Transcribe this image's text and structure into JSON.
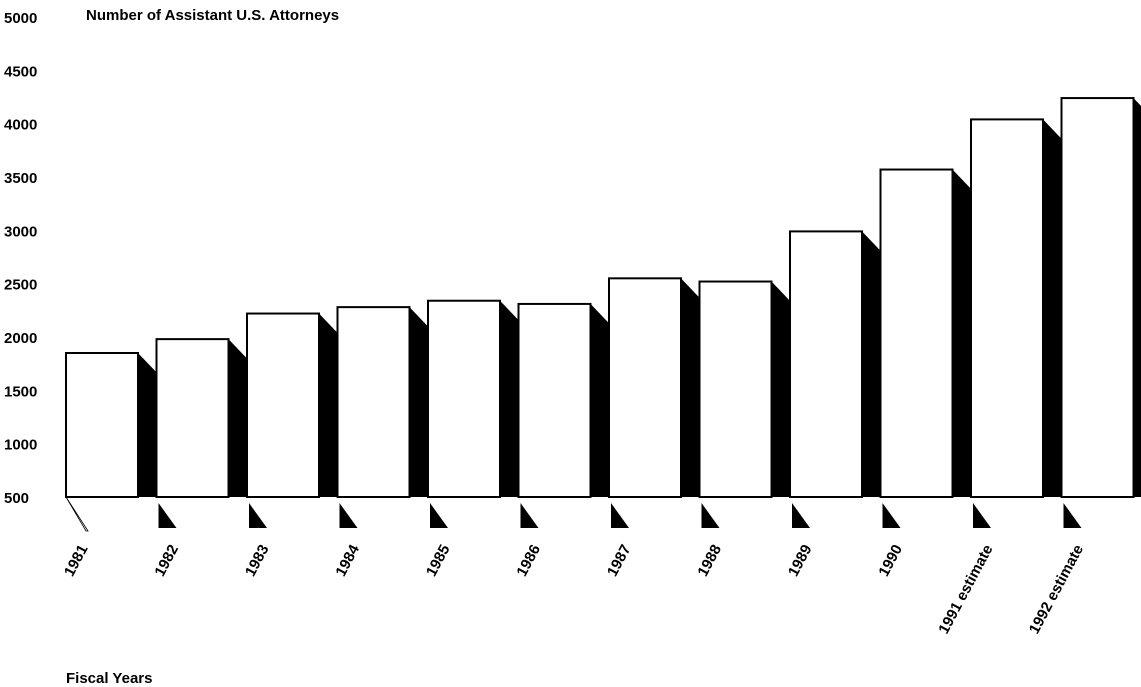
{
  "chart_data": {
    "type": "bar",
    "title": "",
    "ylabel": "Number of Assistant U.S. Attorneys",
    "xlabel": "Fiscal Years",
    "ylim": [
      500,
      5000
    ],
    "yticks": [
      500,
      1000,
      1500,
      2000,
      2500,
      3000,
      3500,
      4000,
      4500,
      5000
    ],
    "categories": [
      "1981",
      "1982",
      "1983",
      "1984",
      "1985",
      "1986",
      "1987",
      "1988",
      "1989",
      "1990",
      "1991 estimate",
      "1992 estimate"
    ],
    "values": [
      1850,
      1980,
      2220,
      2280,
      2340,
      2310,
      2550,
      2520,
      2990,
      3570,
      4040,
      4240
    ],
    "grid": false,
    "colors": {
      "bar_fill": "#ffffff",
      "bar_stroke": "#000000",
      "shadow": "#000000"
    }
  }
}
